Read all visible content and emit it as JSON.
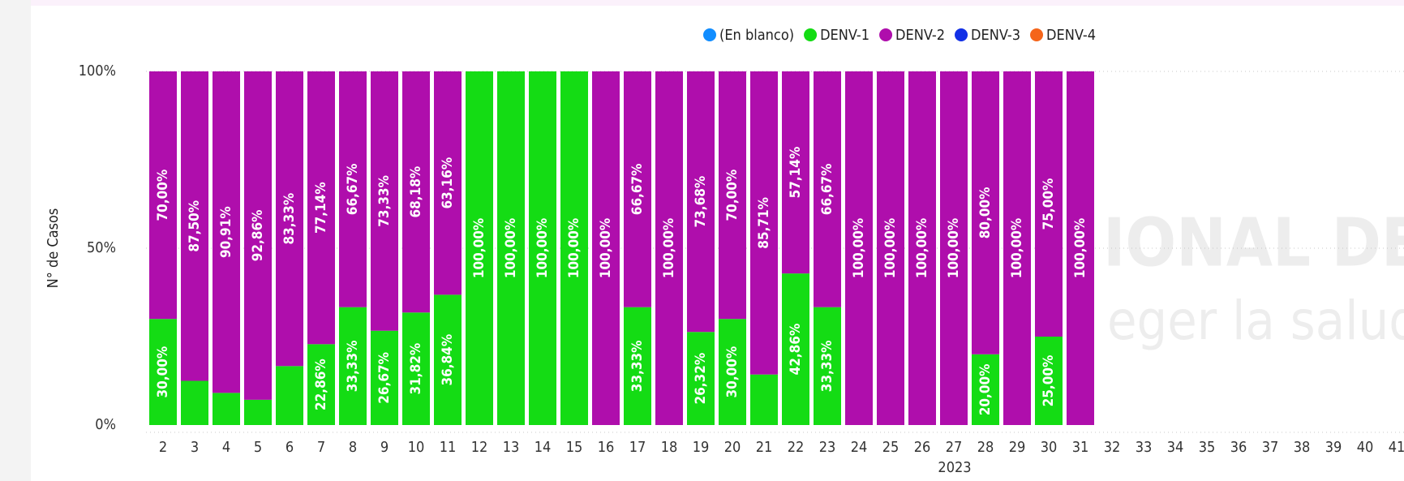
{
  "chart_data": {
    "type": "stacked_bar_100",
    "y_label": "N° de Casos",
    "x_label": "2023",
    "watermark": [
      "IONAL DE",
      "eger la salud”"
    ],
    "categories": [
      "2",
      "3",
      "4",
      "5",
      "6",
      "7",
      "8",
      "9",
      "10",
      "11",
      "12",
      "13",
      "14",
      "15",
      "16",
      "17",
      "18",
      "19",
      "20",
      "21",
      "22",
      "23",
      "24",
      "25",
      "26",
      "27",
      "28",
      "29",
      "30",
      "31",
      "32",
      "33",
      "34",
      "35",
      "36",
      "37",
      "38",
      "39",
      "40",
      "41"
    ],
    "series": [
      {
        "name": "(En blanco)",
        "color": "#118DFF",
        "values": [
          null,
          null,
          null,
          null,
          null,
          null,
          null,
          null,
          null,
          null,
          null,
          null,
          null,
          null,
          null,
          null,
          null,
          null,
          null,
          null,
          null,
          null,
          null,
          null,
          null,
          null,
          null,
          null,
          null,
          null,
          null,
          null,
          null,
          null,
          null,
          null,
          null,
          null,
          null,
          null
        ]
      },
      {
        "name": "DENV-1",
        "color": "#14DC14",
        "values": [
          30,
          12.5,
          9.09,
          7.14,
          16.67,
          22.86,
          33.33,
          26.67,
          31.82,
          36.84,
          100,
          100,
          100,
          100,
          null,
          33.33,
          null,
          26.32,
          30,
          14.29,
          42.86,
          33.33,
          null,
          null,
          null,
          null,
          20,
          null,
          25,
          null,
          null,
          null,
          null,
          null,
          null,
          null,
          null,
          null,
          null,
          null
        ],
        "value_labels": [
          "30,00%",
          null,
          null,
          null,
          null,
          "22,86%",
          "33,33%",
          "26,67%",
          "31,82%",
          "36,84%",
          "100,00%",
          "100,00%",
          "100,00%",
          "100,00%",
          null,
          "33,33%",
          null,
          "26,32%",
          "30,00%",
          null,
          "42,86%",
          "33,33%",
          null,
          null,
          null,
          null,
          "20,00%",
          null,
          "25,00%",
          null,
          null,
          null,
          null,
          null,
          null,
          null,
          null,
          null,
          null,
          null
        ]
      },
      {
        "name": "DENV-2",
        "color": "#AF0EAC",
        "values": [
          70,
          87.5,
          90.91,
          92.86,
          83.33,
          77.14,
          66.67,
          73.33,
          68.18,
          63.16,
          null,
          null,
          null,
          null,
          100,
          66.67,
          100,
          73.68,
          70,
          85.71,
          57.14,
          66.67,
          100,
          100,
          100,
          100,
          80,
          100,
          75,
          100,
          null,
          null,
          null,
          null,
          null,
          null,
          null,
          null,
          null,
          null
        ],
        "value_labels": [
          "70,00%",
          "87,50%",
          "90,91%",
          "92,86%",
          "83,33%",
          "77,14%",
          "66,67%",
          "73,33%",
          "68,18%",
          "63,16%",
          null,
          null,
          null,
          null,
          "100,00%",
          "66,67%",
          "100,00%",
          "73,68%",
          "70,00%",
          "85,71%",
          "57,14%",
          "66,67%",
          "100,00%",
          "100,00%",
          "100,00%",
          "100,00%",
          "80,00%",
          "100,00%",
          "75,00%",
          "100,00%",
          null,
          null,
          null,
          null,
          null,
          null,
          null,
          null,
          null,
          null
        ]
      },
      {
        "name": "DENV-3",
        "color": "#1230E6",
        "values": [
          null,
          null,
          null,
          null,
          null,
          null,
          null,
          null,
          null,
          null,
          null,
          null,
          null,
          null,
          null,
          null,
          null,
          null,
          null,
          null,
          null,
          null,
          null,
          null,
          null,
          null,
          null,
          null,
          null,
          null,
          null,
          null,
          null,
          null,
          null,
          null,
          null,
          null,
          null,
          null
        ]
      },
      {
        "name": "DENV-4",
        "color": "#F5651A",
        "values": [
          null,
          null,
          null,
          null,
          null,
          null,
          null,
          null,
          null,
          null,
          null,
          null,
          null,
          null,
          null,
          null,
          null,
          null,
          null,
          null,
          null,
          null,
          null,
          null,
          null,
          null,
          null,
          null,
          null,
          null,
          null,
          null,
          null,
          null,
          null,
          null,
          null,
          null,
          null,
          null
        ]
      }
    ],
    "ylim": [
      0,
      100
    ],
    "yticks": [
      {
        "value": 0,
        "label": "0%"
      },
      {
        "value": 50,
        "label": "50%"
      },
      {
        "value": 100,
        "label": "100%"
      }
    ],
    "grid": true
  }
}
